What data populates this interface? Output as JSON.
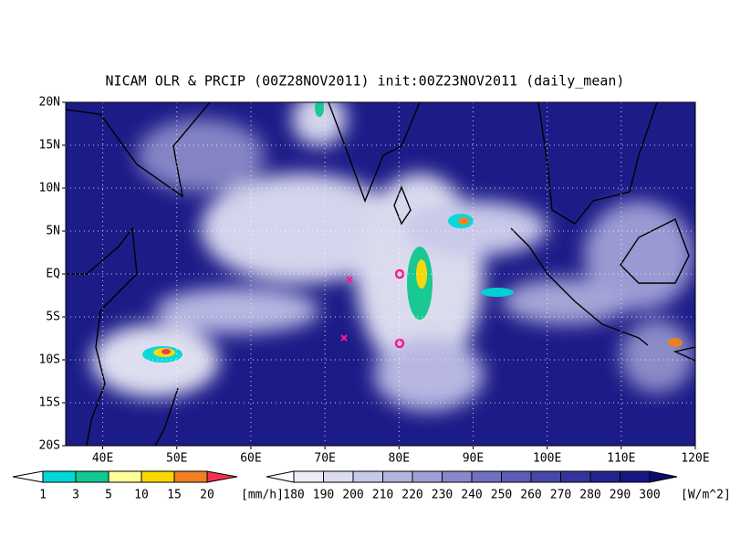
{
  "map": {
    "title": "NICAM OLR & PRCIP (00Z28NOV2011) init:00Z23NOV2011 (daily_mean)",
    "xlim": [
      35,
      120
    ],
    "ylim": [
      -20,
      20
    ],
    "xticks": [
      {
        "value": 40,
        "label": "40E"
      },
      {
        "value": 50,
        "label": "50E"
      },
      {
        "value": 60,
        "label": "60E"
      },
      {
        "value": 70,
        "label": "70E"
      },
      {
        "value": 80,
        "label": "80E"
      },
      {
        "value": 90,
        "label": "90E"
      },
      {
        "value": 100,
        "label": "100E"
      },
      {
        "value": 110,
        "label": "110E"
      },
      {
        "value": 120,
        "label": "120E"
      }
    ],
    "yticks": [
      {
        "value": -20,
        "label": "20S"
      },
      {
        "value": -15,
        "label": "15S"
      },
      {
        "value": -10,
        "label": "10S"
      },
      {
        "value": -5,
        "label": "5S"
      },
      {
        "value": 0,
        "label": "EQ"
      },
      {
        "value": 5,
        "label": "5N"
      },
      {
        "value": 10,
        "label": "10N"
      },
      {
        "value": 15,
        "label": "15N"
      },
      {
        "value": 20,
        "label": "20N"
      }
    ],
    "grid": true,
    "precip_colorbar": {
      "levels": [
        1,
        3,
        5,
        10,
        15,
        20
      ],
      "unit": "[mm/h]",
      "colors": [
        "#ffffff",
        "#00d8d8",
        "#10c890",
        "#ffff98",
        "#f8d800",
        "#f08020",
        "#f03050"
      ]
    },
    "olr_colorbar": {
      "levels": [
        180,
        190,
        200,
        210,
        220,
        230,
        240,
        250,
        260,
        270,
        280,
        290,
        300
      ],
      "unit": "[W/m^2]",
      "colors": [
        "#ffffff",
        "#ececf6",
        "#dcdcf0",
        "#c8c8e8",
        "#b4b4e0",
        "#a0a0d6",
        "#8888cc",
        "#7070c0",
        "#5c5cb4",
        "#4848a8",
        "#34349c",
        "#242490",
        "#181884",
        "#0c0c70"
      ]
    }
  }
}
